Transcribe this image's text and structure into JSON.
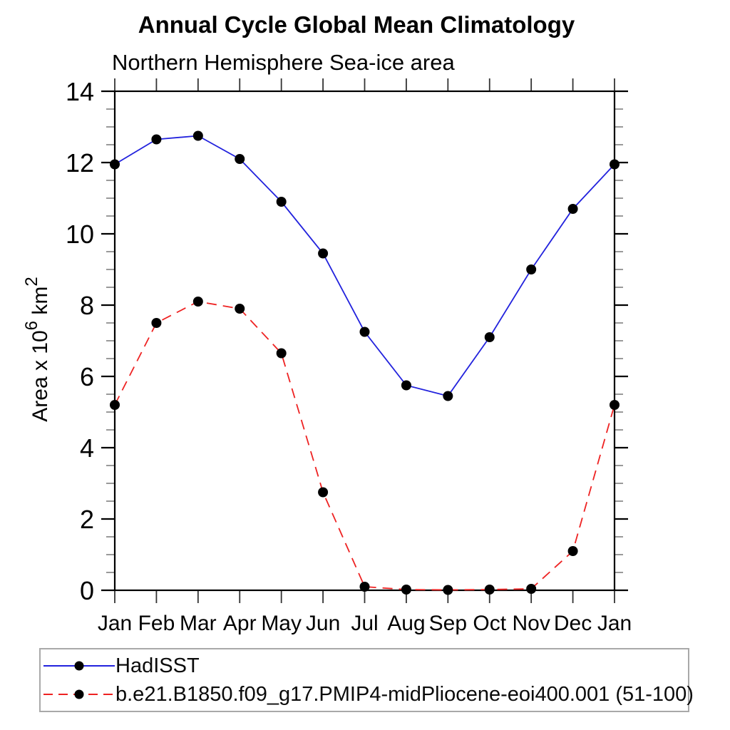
{
  "chart_data": {
    "type": "line",
    "title": "Annual Cycle Global Mean Climatology",
    "subtitle": "Northern Hemisphere Sea-ice area",
    "xlabel": "",
    "ylabel": "Area x 10^6 km^2",
    "ylabel_parts": {
      "pre": "Area x 10",
      "sup1": "6",
      "mid": " km",
      "sup2": "2"
    },
    "categories": [
      "Jan",
      "Feb",
      "Mar",
      "Apr",
      "May",
      "Jun",
      "Jul",
      "Aug",
      "Sep",
      "Oct",
      "Nov",
      "Dec",
      "Jan"
    ],
    "ylim": [
      0,
      14
    ],
    "ytick_major": [
      0,
      2,
      4,
      6,
      8,
      10,
      12,
      14
    ],
    "ytick_minor_step": 0.5,
    "grid": "off",
    "legend_position": "bottom",
    "axis_color": "#000000",
    "minor_tick_color": "#808080",
    "marker_color": "#000000",
    "series": [
      {
        "name": "HadISST",
        "color": "#2222dd",
        "style": "solid",
        "values": [
          11.95,
          12.65,
          12.75,
          12.1,
          10.9,
          9.45,
          7.25,
          5.75,
          5.45,
          7.1,
          9.0,
          10.7,
          11.95
        ]
      },
      {
        "name": "b.e21.B1850.f09_g17.PMIP4-midPliocene-eoi400.001 (51-100)",
        "color": "#ee2222",
        "style": "dashed",
        "values": [
          5.2,
          7.5,
          8.1,
          7.9,
          6.65,
          2.75,
          0.1,
          0.02,
          0.01,
          0.02,
          0.04,
          1.1,
          5.2
        ]
      }
    ]
  }
}
